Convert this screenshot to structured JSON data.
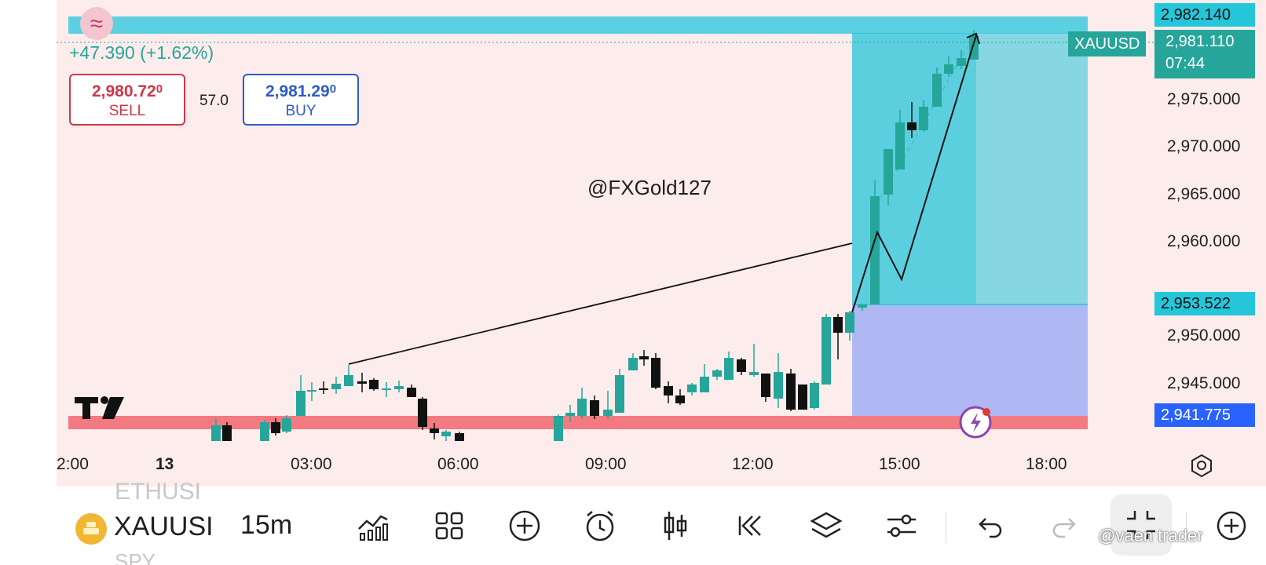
{
  "symbol": "XAUUSD",
  "change_text": "+47.390 (+1.62%)",
  "watermark_handle": "@FXGold127",
  "sell": {
    "price_main": "2,980.72",
    "price_sup": "0",
    "label": "SELL"
  },
  "buy": {
    "price_main": "2,981.29",
    "price_sup": "0",
    "label": "BUY"
  },
  "spread": "57.0",
  "price_axis": [
    "2,975.000",
    "2,970.000",
    "2,965.000",
    "2,960.000",
    "2,950.000",
    "2,945.000"
  ],
  "price_tags": {
    "target": "2,982.140",
    "current_price": "2,981.110",
    "countdown": "07:44",
    "entry": "2,953.522",
    "stop": "2,941.775"
  },
  "time_axis": [
    "2:00",
    "13",
    "03:00",
    "06:00",
    "09:00",
    "12:00",
    "15:00",
    "18:00"
  ],
  "toolbar": {
    "symbol_short": "XAUUSI",
    "timeframe": "15m",
    "scroll_above": "ETHUSI",
    "scroll_below": "SPY",
    "watermark": "@vaen trader"
  },
  "colors": {
    "up": "#26a69a",
    "down": "#111111",
    "profit_zone": "#26c6da",
    "loss_zone": "#b0b8f4",
    "stop_bar": "#f47a82",
    "sell": "#d0364a",
    "buy": "#2f5cc8"
  },
  "icons": [
    "indicators-icon",
    "layouts-icon",
    "add-icon",
    "alarm-icon",
    "candle-type-icon",
    "replay-icon",
    "layers-icon",
    "settings-sliders-icon",
    "undo-icon",
    "redo-icon",
    "fullscreen-exit-icon",
    "zoom-in-icon"
  ]
}
